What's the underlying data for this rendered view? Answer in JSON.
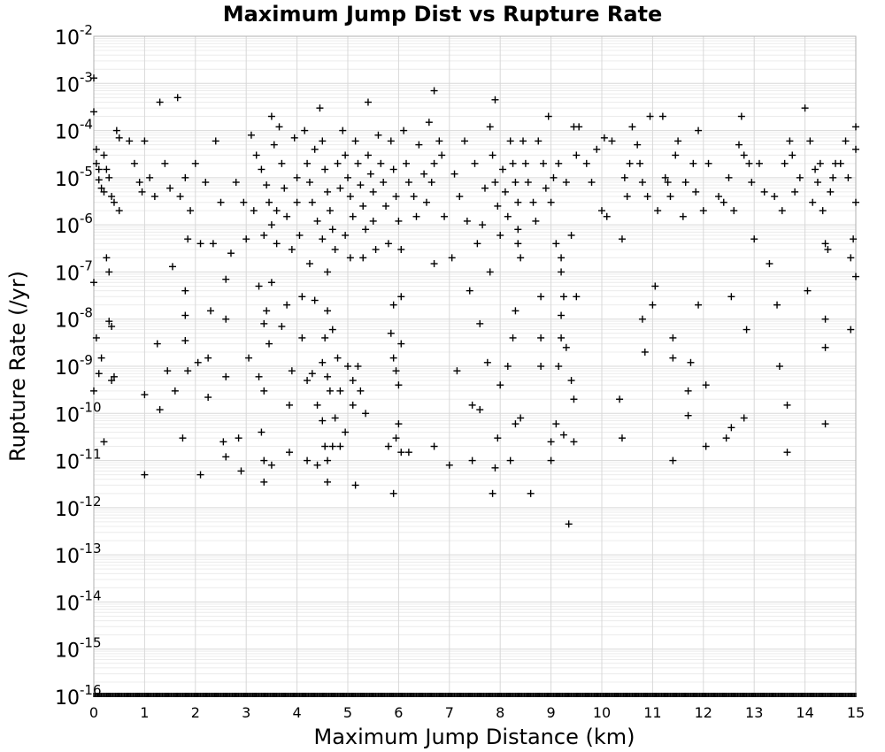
{
  "chart_data": {
    "type": "scatter",
    "title": "Maximum Jump Dist vs Rupture Rate",
    "xlabel": "Maximum Jump Distance (km)",
    "ylabel": "Rupture Rate (/yr)",
    "xlim": [
      0,
      15
    ],
    "ylim": [
      1e-16,
      0.01
    ],
    "yscale": "log",
    "grid": true,
    "marker": "+",
    "xticks": [
      "0",
      "1",
      "2",
      "3",
      "4",
      "5",
      "6",
      "7",
      "8",
      "9",
      "10",
      "11",
      "12",
      "13",
      "14",
      "15"
    ],
    "yticks": [
      {
        "base": "10",
        "exp": "-2"
      },
      {
        "base": "10",
        "exp": "-3"
      },
      {
        "base": "10",
        "exp": "-4"
      },
      {
        "base": "10",
        "exp": "-5"
      },
      {
        "base": "10",
        "exp": "-6"
      },
      {
        "base": "10",
        "exp": "-7"
      },
      {
        "base": "10",
        "exp": "-8"
      },
      {
        "base": "10",
        "exp": "-9"
      },
      {
        "base": "10",
        "exp": "-10"
      },
      {
        "base": "10",
        "exp": "-11"
      },
      {
        "base": "10",
        "exp": "-12"
      },
      {
        "base": "10",
        "exp": "-13"
      },
      {
        "base": "10",
        "exp": "-14"
      },
      {
        "base": "10",
        "exp": "-15"
      },
      {
        "base": "10",
        "exp": "-16"
      }
    ],
    "points": [
      [
        0.0,
        0.0013
      ],
      [
        0.0,
        0.00025
      ],
      [
        0.05,
        4e-05
      ],
      [
        0.05,
        2e-05
      ],
      [
        0.1,
        1.5e-05
      ],
      [
        0.1,
        9e-06
      ],
      [
        0.15,
        6e-06
      ],
      [
        0.2,
        3e-05
      ],
      [
        0.2,
        5e-06
      ],
      [
        0.25,
        1.5e-05
      ],
      [
        0.25,
        2e-07
      ],
      [
        0.3,
        1e-05
      ],
      [
        0.3,
        1e-07
      ],
      [
        0.35,
        4e-06
      ],
      [
        0.35,
        7e-09
      ],
      [
        0.4,
        3e-06
      ],
      [
        0.4,
        6e-10
      ],
      [
        0.45,
        0.0001
      ],
      [
        0.5,
        7e-05
      ],
      [
        0.5,
        2e-06
      ],
      [
        0.0,
        6e-08
      ],
      [
        0.0,
        3e-10
      ],
      [
        0.15,
        1.5e-09
      ],
      [
        0.2,
        2.5e-11
      ],
      [
        0.3,
        9e-09
      ],
      [
        0.35,
        5e-10
      ],
      [
        0.05,
        4e-09
      ],
      [
        0.1,
        7e-10
      ],
      [
        0.7,
        6e-05
      ],
      [
        0.8,
        2e-05
      ],
      [
        0.9,
        8e-06
      ],
      [
        0.95,
        5e-06
      ],
      [
        1.0,
        6e-05
      ],
      [
        1.0,
        2.5e-10
      ],
      [
        1.0,
        5e-12
      ],
      [
        1.1,
        1e-05
      ],
      [
        1.2,
        4e-06
      ],
      [
        1.25,
        3e-09
      ],
      [
        1.3,
        0.0004
      ],
      [
        1.3,
        1.2e-10
      ],
      [
        1.4,
        2e-05
      ],
      [
        1.45,
        8e-10
      ],
      [
        1.5,
        6e-06
      ],
      [
        1.55,
        1.3e-07
      ],
      [
        1.6,
        3e-10
      ],
      [
        1.65,
        0.0005
      ],
      [
        1.7,
        4e-06
      ],
      [
        1.75,
        3e-11
      ],
      [
        1.8,
        1e-05
      ],
      [
        1.8,
        4e-08
      ],
      [
        1.8,
        3.5e-09
      ],
      [
        1.8,
        1.2e-08
      ],
      [
        1.85,
        5e-07
      ],
      [
        1.85,
        8e-10
      ],
      [
        1.9,
        2e-06
      ],
      [
        2.0,
        2e-05
      ],
      [
        2.05,
        1.2e-09
      ],
      [
        2.1,
        4e-07
      ],
      [
        2.1,
        5e-12
      ],
      [
        2.2,
        8e-06
      ],
      [
        2.25,
        1.5e-09
      ],
      [
        2.25,
        2.2e-10
      ],
      [
        2.3,
        1.5e-08
      ],
      [
        2.35,
        4e-07
      ],
      [
        2.4,
        6e-05
      ],
      [
        2.5,
        3e-06
      ],
      [
        2.55,
        2.5e-11
      ],
      [
        2.6,
        7e-08
      ],
      [
        2.6,
        1e-08
      ],
      [
        2.6,
        6e-10
      ],
      [
        2.6,
        1.2e-11
      ],
      [
        2.7,
        2.5e-07
      ],
      [
        2.8,
        8e-06
      ],
      [
        2.85,
        3e-11
      ],
      [
        2.9,
        6e-12
      ],
      [
        2.95,
        3e-06
      ],
      [
        3.0,
        5e-07
      ],
      [
        3.05,
        1.5e-09
      ],
      [
        3.1,
        8e-05
      ],
      [
        3.15,
        2e-06
      ],
      [
        3.2,
        3e-05
      ],
      [
        3.25,
        5e-08
      ],
      [
        3.25,
        6e-10
      ],
      [
        3.3,
        1.5e-05
      ],
      [
        3.3,
        4e-11
      ],
      [
        3.35,
        6e-07
      ],
      [
        3.35,
        8e-09
      ],
      [
        3.35,
        3e-10
      ],
      [
        3.35,
        1e-11
      ],
      [
        3.35,
        3.5e-12
      ],
      [
        3.4,
        7e-06
      ],
      [
        3.4,
        1.5e-08
      ],
      [
        3.45,
        3e-06
      ],
      [
        3.45,
        3e-09
      ],
      [
        3.5,
        0.0002
      ],
      [
        3.5,
        1e-06
      ],
      [
        3.5,
        6e-08
      ],
      [
        3.5,
        8e-12
      ],
      [
        3.55,
        5e-05
      ],
      [
        3.6,
        2e-06
      ],
      [
        3.6,
        4e-07
      ],
      [
        3.65,
        0.00012
      ],
      [
        3.7,
        2e-05
      ],
      [
        3.7,
        7e-09
      ],
      [
        3.75,
        6e-06
      ],
      [
        3.8,
        1.5e-06
      ],
      [
        3.8,
        2e-08
      ],
      [
        3.85,
        1.5e-10
      ],
      [
        3.85,
        1.5e-11
      ],
      [
        3.9,
        3e-07
      ],
      [
        3.9,
        8e-10
      ],
      [
        3.95,
        7e-05
      ],
      [
        4.0,
        1e-05
      ],
      [
        4.0,
        3e-06
      ],
      [
        4.05,
        6e-07
      ],
      [
        4.1,
        3e-08
      ],
      [
        4.1,
        4e-09
      ],
      [
        4.15,
        0.0001
      ],
      [
        4.2,
        2e-05
      ],
      [
        4.2,
        5e-10
      ],
      [
        4.2,
        1e-11
      ],
      [
        4.25,
        8e-06
      ],
      [
        4.25,
        1.5e-07
      ],
      [
        4.3,
        3e-06
      ],
      [
        4.3,
        7e-10
      ],
      [
        4.35,
        4e-05
      ],
      [
        4.35,
        2.5e-08
      ],
      [
        4.4,
        1.2e-06
      ],
      [
        4.4,
        1.5e-10
      ],
      [
        4.4,
        8e-12
      ],
      [
        4.45,
        0.0003
      ],
      [
        4.5,
        6e-05
      ],
      [
        4.5,
        5e-07
      ],
      [
        4.5,
        1.2e-09
      ],
      [
        4.5,
        7e-11
      ],
      [
        4.55,
        1.5e-05
      ],
      [
        4.55,
        4e-09
      ],
      [
        4.55,
        2e-11
      ],
      [
        4.6,
        5e-06
      ],
      [
        4.6,
        1e-07
      ],
      [
        4.6,
        1.5e-08
      ],
      [
        4.6,
        6e-10
      ],
      [
        4.6,
        1e-11
      ],
      [
        4.6,
        3.5e-12
      ],
      [
        4.65,
        2e-06
      ],
      [
        4.65,
        3e-10
      ],
      [
        4.7,
        8e-07
      ],
      [
        4.7,
        6e-09
      ],
      [
        4.7,
        2e-11
      ],
      [
        4.75,
        3e-07
      ],
      [
        4.75,
        8e-11
      ],
      [
        4.8,
        2e-05
      ],
      [
        4.8,
        1.5e-09
      ],
      [
        4.85,
        6e-06
      ],
      [
        4.85,
        3e-10
      ],
      [
        4.85,
        2e-11
      ],
      [
        4.9,
        0.0001
      ],
      [
        4.95,
        3e-05
      ],
      [
        4.95,
        6e-07
      ],
      [
        4.95,
        4e-11
      ],
      [
        5.0,
        1e-05
      ],
      [
        5.0,
        1e-09
      ],
      [
        5.05,
        4e-06
      ],
      [
        5.05,
        2e-07
      ],
      [
        5.1,
        1.5e-06
      ],
      [
        5.1,
        5e-10
      ],
      [
        5.1,
        1.5e-10
      ],
      [
        5.15,
        6e-05
      ],
      [
        5.15,
        3e-12
      ],
      [
        5.2,
        2e-05
      ],
      [
        5.2,
        1e-09
      ],
      [
        5.25,
        7e-06
      ],
      [
        5.25,
        3e-10
      ],
      [
        5.3,
        2.5e-06
      ],
      [
        5.3,
        2e-07
      ],
      [
        5.35,
        8e-07
      ],
      [
        5.35,
        1e-10
      ],
      [
        5.4,
        3e-05
      ],
      [
        5.4,
        0.0004
      ],
      [
        5.45,
        1.2e-05
      ],
      [
        5.5,
        5e-06
      ],
      [
        5.5,
        1.2e-06
      ],
      [
        5.55,
        3e-07
      ],
      [
        5.6,
        8e-05
      ],
      [
        5.65,
        2e-05
      ],
      [
        5.7,
        8e-06
      ],
      [
        5.75,
        2.5e-06
      ],
      [
        5.8,
        4e-07
      ],
      [
        5.8,
        2e-11
      ],
      [
        5.85,
        6e-05
      ],
      [
        5.85,
        5e-09
      ],
      [
        5.9,
        1.5e-05
      ],
      [
        5.9,
        2e-08
      ],
      [
        5.9,
        1.5e-09
      ],
      [
        5.9,
        2e-12
      ],
      [
        5.95,
        4e-06
      ],
      [
        5.95,
        8e-10
      ],
      [
        5.95,
        3e-11
      ],
      [
        6.0,
        1.2e-06
      ],
      [
        6.0,
        4e-10
      ],
      [
        6.0,
        6e-11
      ],
      [
        6.05,
        3e-07
      ],
      [
        6.05,
        3e-08
      ],
      [
        6.05,
        3e-09
      ],
      [
        6.05,
        1.5e-11
      ],
      [
        6.1,
        0.0001
      ],
      [
        6.15,
        2e-05
      ],
      [
        6.2,
        8e-06
      ],
      [
        6.2,
        1.5e-11
      ],
      [
        6.3,
        4e-06
      ],
      [
        6.35,
        1.5e-06
      ],
      [
        6.4,
        5e-05
      ],
      [
        6.5,
        1.2e-05
      ],
      [
        6.55,
        3e-06
      ],
      [
        6.6,
        0.00015
      ],
      [
        6.65,
        8e-06
      ],
      [
        6.7,
        2e-05
      ],
      [
        6.7,
        0.0007
      ],
      [
        6.7,
        1.5e-07
      ],
      [
        6.7,
        2e-11
      ],
      [
        6.8,
        6e-05
      ],
      [
        6.85,
        3e-05
      ],
      [
        6.9,
        1.5e-06
      ],
      [
        7.0,
        8e-12
      ],
      [
        7.05,
        2e-07
      ],
      [
        7.1,
        1.2e-05
      ],
      [
        7.15,
        8e-10
      ],
      [
        7.2,
        4e-06
      ],
      [
        7.3,
        6e-05
      ],
      [
        7.35,
        1.2e-06
      ],
      [
        7.4,
        4e-08
      ],
      [
        7.45,
        1e-11
      ],
      [
        7.45,
        1.5e-10
      ],
      [
        7.5,
        2e-05
      ],
      [
        7.55,
        4e-07
      ],
      [
        7.6,
        1.2e-10
      ],
      [
        7.6,
        8e-09
      ],
      [
        7.65,
        1e-06
      ],
      [
        7.7,
        6e-06
      ],
      [
        7.75,
        1.2e-09
      ],
      [
        7.8,
        0.00012
      ],
      [
        7.8,
        1e-07
      ],
      [
        7.85,
        3e-05
      ],
      [
        7.85,
        2e-12
      ],
      [
        7.9,
        8e-06
      ],
      [
        7.9,
        0.00045
      ],
      [
        7.9,
        7e-12
      ],
      [
        7.95,
        2.5e-06
      ],
      [
        7.95,
        3e-11
      ],
      [
        8.0,
        6e-07
      ],
      [
        8.0,
        4e-10
      ],
      [
        8.05,
        1.5e-05
      ],
      [
        8.1,
        5e-06
      ],
      [
        8.15,
        1.5e-06
      ],
      [
        8.15,
        1e-09
      ],
      [
        8.2,
        6e-05
      ],
      [
        8.2,
        1e-11
      ],
      [
        8.25,
        2e-05
      ],
      [
        8.25,
        4e-09
      ],
      [
        8.3,
        8e-06
      ],
      [
        8.3,
        1.5e-08
      ],
      [
        8.3,
        6e-11
      ],
      [
        8.35,
        3e-06
      ],
      [
        8.35,
        8e-07
      ],
      [
        8.35,
        4e-07
      ],
      [
        8.4,
        2e-07
      ],
      [
        8.4,
        8e-11
      ],
      [
        8.45,
        6e-05
      ],
      [
        8.5,
        2e-05
      ],
      [
        8.55,
        8e-06
      ],
      [
        8.6,
        2e-12
      ],
      [
        8.65,
        3e-06
      ],
      [
        8.7,
        1.2e-06
      ],
      [
        8.75,
        6e-05
      ],
      [
        8.8,
        3e-08
      ],
      [
        8.8,
        4e-09
      ],
      [
        8.8,
        1e-09
      ],
      [
        8.85,
        2e-05
      ],
      [
        8.9,
        6e-06
      ],
      [
        8.95,
        0.0002
      ],
      [
        9.0,
        3e-06
      ],
      [
        9.0,
        2.5e-11
      ],
      [
        9.0,
        1e-11
      ],
      [
        9.05,
        1e-05
      ],
      [
        9.1,
        4e-07
      ],
      [
        9.1,
        6e-11
      ],
      [
        9.15,
        2e-05
      ],
      [
        9.15,
        1e-09
      ],
      [
        9.2,
        2e-07
      ],
      [
        9.2,
        1e-07
      ],
      [
        9.2,
        1.2e-08
      ],
      [
        9.2,
        4e-09
      ],
      [
        9.25,
        3e-08
      ],
      [
        9.25,
        3.5e-11
      ],
      [
        9.3,
        8e-06
      ],
      [
        9.3,
        2.5e-09
      ],
      [
        9.35,
        4.5e-13
      ],
      [
        9.4,
        6e-07
      ],
      [
        9.4,
        5e-10
      ],
      [
        9.45,
        0.00012
      ],
      [
        9.45,
        2e-10
      ],
      [
        9.45,
        2.5e-11
      ],
      [
        9.5,
        3e-05
      ],
      [
        9.5,
        3e-08
      ],
      [
        9.55,
        0.00012
      ],
      [
        9.7,
        2e-05
      ],
      [
        9.8,
        8e-06
      ],
      [
        9.9,
        4e-05
      ],
      [
        10.0,
        2e-06
      ],
      [
        10.05,
        7e-05
      ],
      [
        10.1,
        1.5e-06
      ],
      [
        10.2,
        6e-05
      ],
      [
        10.35,
        2e-10
      ],
      [
        10.4,
        3e-11
      ],
      [
        10.4,
        5e-07
      ],
      [
        10.45,
        1e-05
      ],
      [
        10.5,
        4e-06
      ],
      [
        10.55,
        2e-05
      ],
      [
        10.6,
        0.00012
      ],
      [
        10.7,
        5e-05
      ],
      [
        10.75,
        2e-05
      ],
      [
        10.8,
        8e-06
      ],
      [
        10.8,
        1e-08
      ],
      [
        10.85,
        2e-09
      ],
      [
        10.9,
        4e-06
      ],
      [
        10.95,
        0.0002
      ],
      [
        11.0,
        2e-08
      ],
      [
        11.05,
        5e-08
      ],
      [
        11.1,
        2e-06
      ],
      [
        11.2,
        0.0002
      ],
      [
        11.25,
        1e-05
      ],
      [
        11.3,
        8e-06
      ],
      [
        11.35,
        4e-06
      ],
      [
        11.4,
        1e-11
      ],
      [
        11.4,
        4e-09
      ],
      [
        11.4,
        1.5e-09
      ],
      [
        11.45,
        3e-05
      ],
      [
        11.5,
        6e-05
      ],
      [
        11.6,
        1.5e-06
      ],
      [
        11.65,
        8e-06
      ],
      [
        11.7,
        3e-10
      ],
      [
        11.7,
        9e-11
      ],
      [
        11.75,
        1.2e-09
      ],
      [
        11.8,
        2e-05
      ],
      [
        11.85,
        5e-06
      ],
      [
        11.9,
        0.0001
      ],
      [
        11.9,
        2e-08
      ],
      [
        12.0,
        2e-06
      ],
      [
        12.05,
        2e-11
      ],
      [
        12.05,
        4e-10
      ],
      [
        12.1,
        2e-05
      ],
      [
        12.3,
        4e-06
      ],
      [
        12.4,
        3e-06
      ],
      [
        12.45,
        3e-11
      ],
      [
        12.5,
        1e-05
      ],
      [
        12.55,
        3e-08
      ],
      [
        12.55,
        5e-11
      ],
      [
        12.6,
        2e-06
      ],
      [
        12.7,
        5e-05
      ],
      [
        12.75,
        0.0002
      ],
      [
        12.8,
        3e-05
      ],
      [
        12.8,
        8e-11
      ],
      [
        12.85,
        6e-09
      ],
      [
        12.9,
        2e-05
      ],
      [
        12.95,
        8e-06
      ],
      [
        13.0,
        5e-07
      ],
      [
        13.1,
        2e-05
      ],
      [
        13.2,
        5e-06
      ],
      [
        13.3,
        1.5e-07
      ],
      [
        13.4,
        4e-06
      ],
      [
        13.45,
        2e-08
      ],
      [
        13.5,
        1e-09
      ],
      [
        13.55,
        2e-06
      ],
      [
        13.6,
        2e-05
      ],
      [
        13.65,
        1.5e-11
      ],
      [
        13.65,
        1.5e-10
      ],
      [
        13.7,
        6e-05
      ],
      [
        13.75,
        3e-05
      ],
      [
        13.8,
        5e-06
      ],
      [
        13.9,
        1e-05
      ],
      [
        14.0,
        0.0003
      ],
      [
        14.05,
        4e-08
      ],
      [
        14.1,
        6e-05
      ],
      [
        14.15,
        3e-06
      ],
      [
        14.2,
        1.5e-05
      ],
      [
        14.25,
        8e-06
      ],
      [
        14.3,
        2e-05
      ],
      [
        14.35,
        2e-06
      ],
      [
        14.4,
        4e-07
      ],
      [
        14.4,
        1e-08
      ],
      [
        14.4,
        2.5e-09
      ],
      [
        14.4,
        6e-11
      ],
      [
        14.45,
        3e-07
      ],
      [
        14.5,
        5e-06
      ],
      [
        14.55,
        1e-05
      ],
      [
        14.6,
        2e-05
      ],
      [
        14.7,
        2e-05
      ],
      [
        14.8,
        6e-05
      ],
      [
        14.85,
        1e-05
      ],
      [
        14.9,
        2e-07
      ],
      [
        14.9,
        6e-09
      ],
      [
        14.95,
        5e-07
      ],
      [
        15.0,
        8e-08
      ],
      [
        15.0,
        3e-06
      ],
      [
        15.0,
        0.00012
      ],
      [
        15.0,
        4e-05
      ]
    ]
  }
}
